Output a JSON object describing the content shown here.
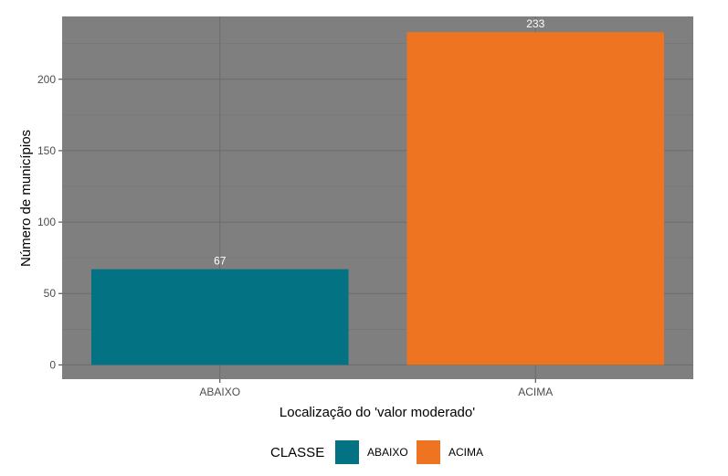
{
  "chart_data": {
    "type": "bar",
    "categories": [
      "ABAIXO",
      "ACIMA"
    ],
    "values": [
      67,
      233
    ],
    "data_labels": [
      "67",
      "233"
    ],
    "xlabel": "Localização do 'valor moderado'",
    "ylabel": "Número de municípios",
    "ylim": [
      -10,
      244
    ],
    "yticks": [
      0,
      50,
      100,
      150,
      200
    ],
    "ytick_labels": [
      "0",
      "50",
      "100",
      "150",
      "200"
    ],
    "grid": true,
    "panel_background": "#7f7f7f",
    "colors": [
      "#037283",
      "#ee7421"
    ],
    "legend": {
      "title": "CLASSE",
      "placement": "bottom",
      "entries": [
        "ABAIXO",
        "ACIMA"
      ]
    }
  }
}
